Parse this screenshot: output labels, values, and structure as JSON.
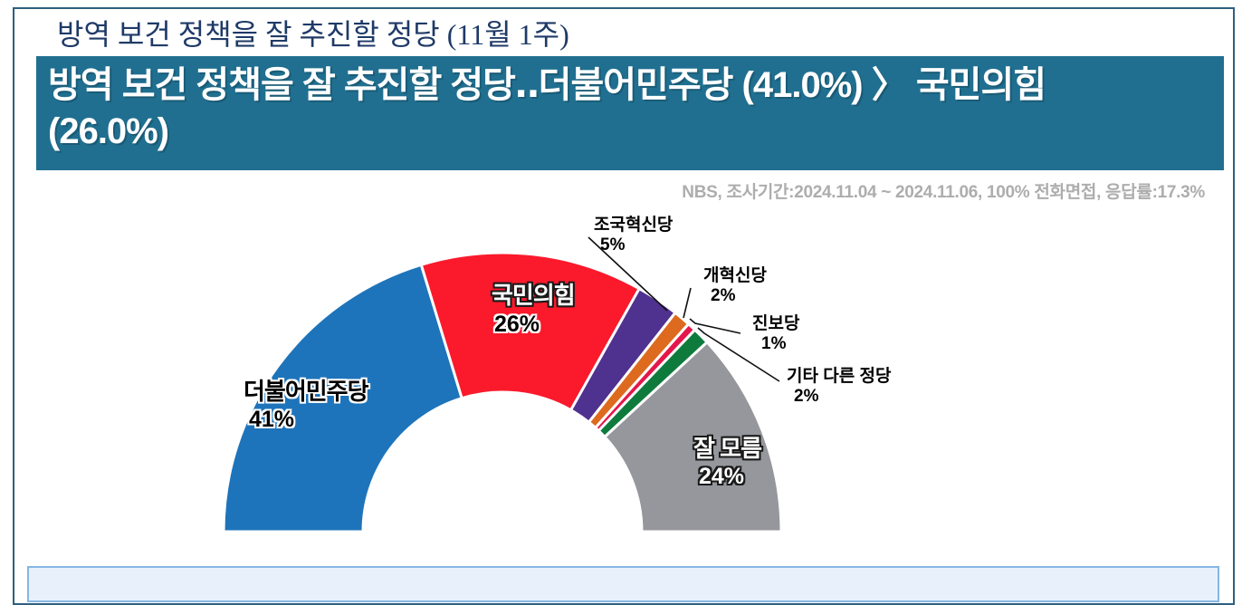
{
  "page": {
    "title": "방역 보건 정책을 잘 추진할 정당 (11월 1주)",
    "banner": {
      "line1": "방역 보건 정책을 잘 추진할 정당‥더불어민주당 (41.0%) 〉 국민의힘",
      "line2": "(26.0%)",
      "bg_color": "#206F90",
      "text_color": "#FFFFFF"
    },
    "source_note": "NBS, 조사기간:2024.11.04 ~ 2024.11.06, 100% 전화면접, 응답률:17.3%"
  },
  "chart_data": {
    "type": "pie",
    "variant": "half-donut",
    "unit": "%",
    "start_angle_deg": 180,
    "end_angle_deg": 0,
    "inner_radius_ratio": 0.5,
    "legend": "none",
    "series": [
      {
        "name": "더불어민주당",
        "value": 41,
        "label": "41%",
        "color": "#1E74BA"
      },
      {
        "name": "국민의힘",
        "value": 26,
        "label": "26%",
        "color": "#FA1A2C"
      },
      {
        "name": "조국혁신당",
        "value": 5,
        "label": "5%",
        "color": "#4F3190"
      },
      {
        "name": "개혁신당",
        "value": 2,
        "label": "2%",
        "color": "#DD6A1E"
      },
      {
        "name": "진보당",
        "value": 1,
        "label": "1%",
        "color": "#E4174A"
      },
      {
        "name": "기타 다른 정당",
        "value": 2,
        "label": "2%",
        "color": "#0E7B3D"
      },
      {
        "name": "잘 모름",
        "value": 24,
        "label": "24%",
        "color": "#95979C"
      }
    ]
  }
}
